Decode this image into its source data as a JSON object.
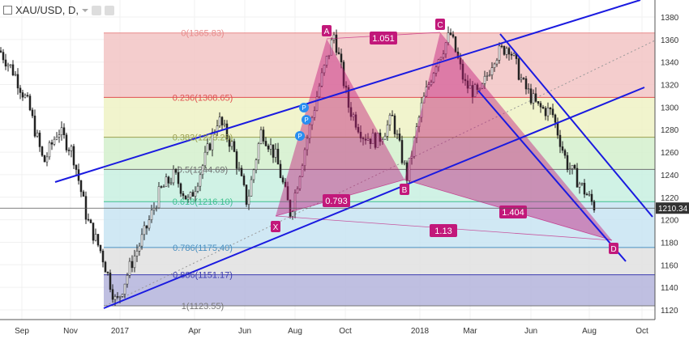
{
  "header": {
    "symbol": "XAU/USD, D,",
    "collapse_icon": "minus-square-icon",
    "icons": [
      "eye-icon",
      "gear-icon"
    ]
  },
  "chart_data": {
    "type": "candlestick",
    "ylim": [
      1110,
      1390
    ],
    "y_ticks": [
      1120,
      1140,
      1160,
      1180,
      1200,
      1220,
      1240,
      1260,
      1280,
      1300,
      1320,
      1340,
      1360,
      1380
    ],
    "x_ticks": [
      "Sep",
      "Nov",
      "2017",
      "Apr",
      "Jun",
      "Aug",
      "Oct",
      "2018",
      "Mar",
      "Jun",
      "Aug",
      "Oct"
    ],
    "current_price": "1210.34",
    "price_path": [
      1350,
      1330,
      1300,
      1250,
      1280,
      1260,
      1200,
      1170,
      1125,
      1160,
      1190,
      1225,
      1240,
      1215,
      1250,
      1290,
      1265,
      1215,
      1280,
      1255,
      1205,
      1265,
      1320,
      1365,
      1300,
      1275,
      1270,
      1290,
      1238,
      1300,
      1340,
      1365,
      1320,
      1310,
      1345,
      1355,
      1320,
      1300,
      1295,
      1250,
      1230,
      1210
    ],
    "fib_levels": [
      {
        "ratio": "0",
        "price": 1365.83,
        "label": "0(1365.83)",
        "color": "#e88a8a",
        "fill": "#f2c4c4"
      },
      {
        "ratio": "0.236",
        "price": 1308.65,
        "label": "0.236(1308.65)",
        "color": "#e05050",
        "fill": "#eef2c4"
      },
      {
        "ratio": "0.382",
        "price": 1273.28,
        "label": "0.382(1273.28)",
        "color": "#9aa050",
        "fill": "#d4f0cc"
      },
      {
        "ratio": "0.5",
        "price": 1244.69,
        "label": "0.5(1244.69)",
        "color": "#707070",
        "fill": "#c8f0e0"
      },
      {
        "ratio": "0.618",
        "price": 1216.1,
        "label": "0.618(1216.10)",
        "color": "#40c090",
        "fill": "#c8e4f2"
      },
      {
        "ratio": "0.786",
        "price": 1175.4,
        "label": "0.786(1175.40)",
        "color": "#4a90c0",
        "fill": "#e0e0e0"
      },
      {
        "ratio": "0.886",
        "price": 1151.17,
        "label": "0.886(1151.17)",
        "color": "#3a3ab0",
        "fill": "#b4b4dc"
      },
      {
        "ratio": "1",
        "price": 1123.55,
        "label": "1(1123.55)",
        "color": "#777777",
        "fill": null
      }
    ],
    "pattern_points": {
      "X": 1203,
      "A": 1361,
      "B": 1236,
      "C": 1366,
      "D": 1182
    },
    "pattern_ratios": [
      "1.051",
      "0.793",
      "1.404",
      "1.13"
    ],
    "pattern_color": "#c2187a",
    "trendline_color": "#1a1ae0"
  }
}
